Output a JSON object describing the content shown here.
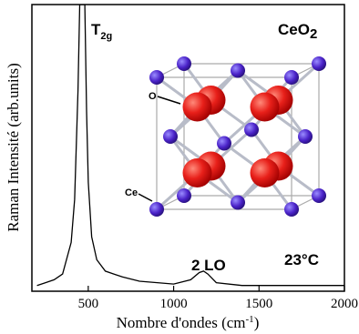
{
  "chart_data": {
    "type": "line",
    "x_label": [
      "Nombre d'ondes (cm",
      "-1",
      ")"
    ],
    "y_label": "Raman Intensité (arb.units)",
    "annotations": {
      "peak": [
        "T",
        "2g"
      ],
      "compound": [
        "CeO",
        "2"
      ],
      "band": "2 LO",
      "temperature": "23°C",
      "oxygen": "O",
      "cerium": "Ce"
    },
    "xlim": [
      170,
      2000
    ],
    "xticks": [
      500,
      1000,
      1500,
      2000
    ],
    "ylim": [
      0,
      100
    ],
    "series": [
      {
        "color": "#000000",
        "x": [
          200,
          250,
          300,
          350,
          400,
          420,
          440,
          450,
          465,
          480,
          490,
          500,
          520,
          550,
          600,
          700,
          800,
          1000,
          1100,
          1150,
          1175,
          1200,
          1250,
          1400,
          1600,
          1800,
          2000
        ],
        "values": [
          2,
          3,
          4,
          6,
          17,
          32,
          70,
          100,
          100,
          100,
          63,
          38,
          19,
          11,
          7,
          5,
          3.5,
          2.5,
          4,
          6.5,
          7,
          6,
          3,
          2,
          2,
          2,
          2
        ]
      }
    ]
  }
}
